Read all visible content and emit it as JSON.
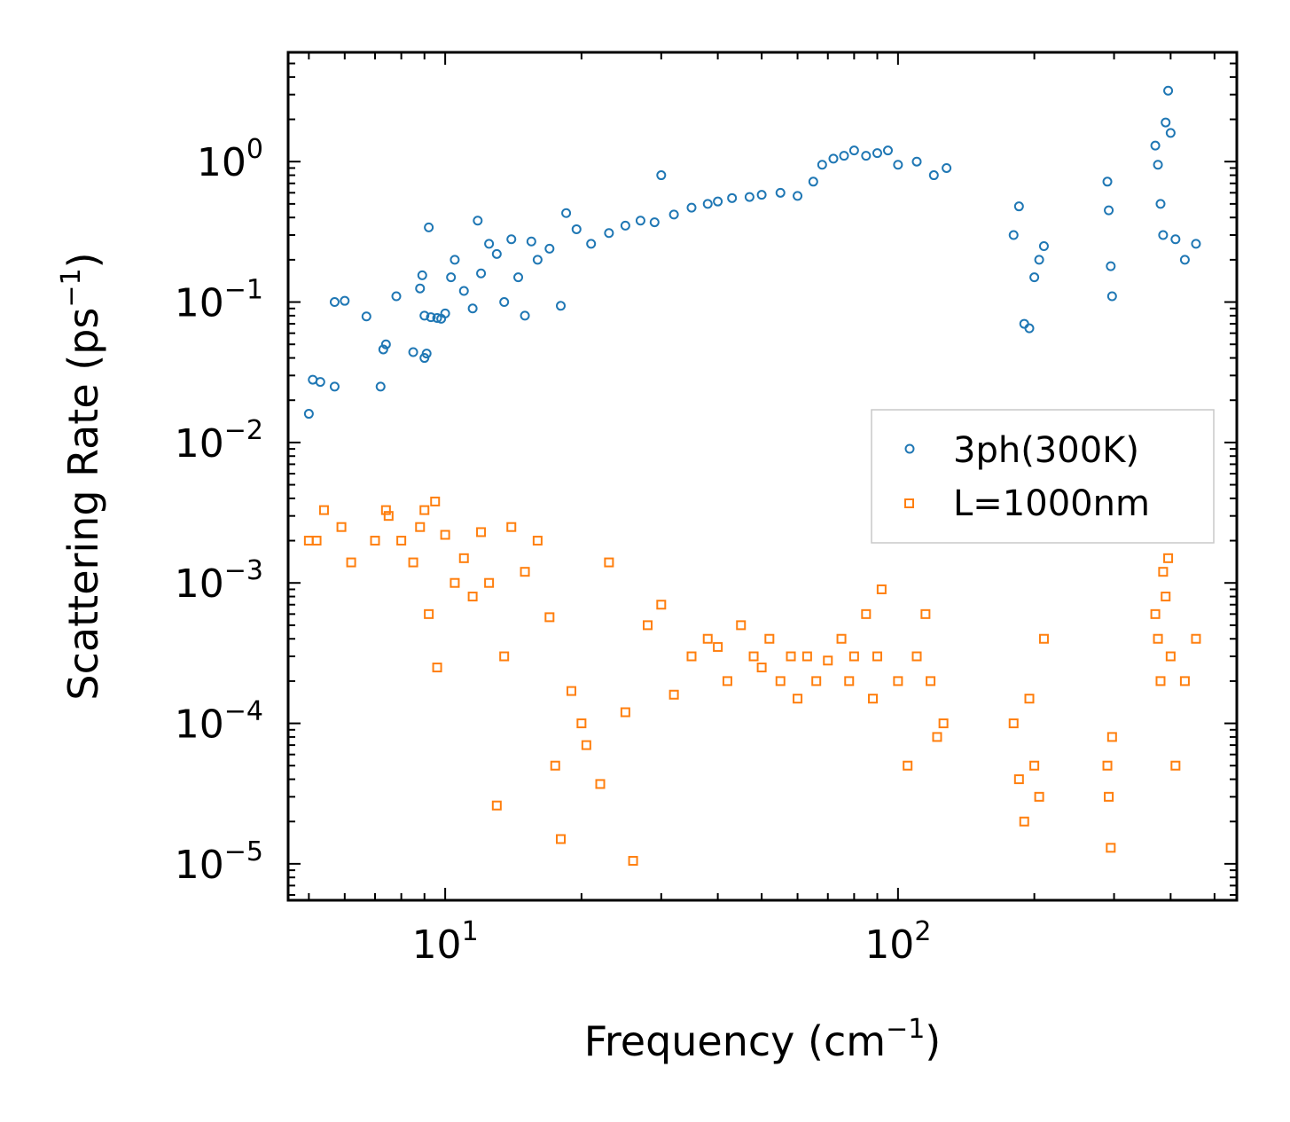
{
  "chart_data": {
    "type": "scatter",
    "xscale": "log",
    "yscale": "log",
    "xlim": [
      4.5,
      560
    ],
    "ylim": [
      5.5e-06,
      6
    ],
    "xlabel": {
      "text": "Frequency (cm",
      "sup": "−1",
      "close": ")"
    },
    "ylabel": {
      "text": "Scattering Rate (ps",
      "sup": "−1",
      "close": ")"
    },
    "xticks": [
      {
        "value": 10,
        "base": "10",
        "exp": "1"
      },
      {
        "value": 100,
        "base": "10",
        "exp": "2"
      }
    ],
    "yticks": [
      {
        "value": 1,
        "base": "10",
        "exp": "0"
      },
      {
        "value": 0.1,
        "base": "10",
        "exp": "−1"
      },
      {
        "value": 0.01,
        "base": "10",
        "exp": "−2"
      },
      {
        "value": 0.001,
        "base": "10",
        "exp": "−3"
      },
      {
        "value": 0.0001,
        "base": "10",
        "exp": "−4"
      },
      {
        "value": 1e-05,
        "base": "10",
        "exp": "−5"
      }
    ],
    "legend_position": "center-right",
    "series": [
      {
        "name": "3ph(300K)",
        "marker": "circle",
        "color": "#1f77b4",
        "points": [
          [
            5.0,
            0.016
          ],
          [
            5.1,
            0.028
          ],
          [
            5.3,
            0.027
          ],
          [
            5.7,
            0.025
          ],
          [
            5.7,
            0.1
          ],
          [
            6.0,
            0.102
          ],
          [
            6.7,
            0.079
          ],
          [
            7.2,
            0.025
          ],
          [
            7.3,
            0.046
          ],
          [
            7.4,
            0.05
          ],
          [
            7.8,
            0.11
          ],
          [
            8.5,
            0.044
          ],
          [
            8.8,
            0.125
          ],
          [
            8.9,
            0.155
          ],
          [
            9.0,
            0.08
          ],
          [
            9.0,
            0.04
          ],
          [
            9.1,
            0.043
          ],
          [
            9.2,
            0.34
          ],
          [
            9.3,
            0.078
          ],
          [
            9.6,
            0.077
          ],
          [
            9.8,
            0.076
          ],
          [
            10.0,
            0.083
          ],
          [
            10.3,
            0.15
          ],
          [
            10.5,
            0.2
          ],
          [
            11.0,
            0.12
          ],
          [
            11.5,
            0.09
          ],
          [
            11.8,
            0.38
          ],
          [
            12.0,
            0.16
          ],
          [
            12.5,
            0.26
          ],
          [
            13.0,
            0.22
          ],
          [
            13.5,
            0.1
          ],
          [
            14.0,
            0.28
          ],
          [
            14.5,
            0.15
          ],
          [
            15.0,
            0.08
          ],
          [
            15.5,
            0.27
          ],
          [
            16.0,
            0.2
          ],
          [
            17.0,
            0.24
          ],
          [
            18.0,
            0.094
          ],
          [
            18.5,
            0.43
          ],
          [
            19.5,
            0.33
          ],
          [
            21.0,
            0.26
          ],
          [
            23.0,
            0.31
          ],
          [
            25.0,
            0.35
          ],
          [
            27.0,
            0.38
          ],
          [
            29.0,
            0.37
          ],
          [
            30.0,
            0.8
          ],
          [
            32.0,
            0.42
          ],
          [
            35.0,
            0.47
          ],
          [
            38.0,
            0.5
          ],
          [
            40.0,
            0.52
          ],
          [
            43.0,
            0.55
          ],
          [
            47.0,
            0.56
          ],
          [
            50.0,
            0.58
          ],
          [
            55.0,
            0.6
          ],
          [
            60.0,
            0.57
          ],
          [
            65.0,
            0.72
          ],
          [
            68.0,
            0.95
          ],
          [
            72.0,
            1.05
          ],
          [
            76.0,
            1.1
          ],
          [
            80.0,
            1.2
          ],
          [
            85.0,
            1.1
          ],
          [
            90.0,
            1.15
          ],
          [
            95.0,
            1.2
          ],
          [
            100.0,
            0.95
          ],
          [
            110.0,
            1.0
          ],
          [
            120.0,
            0.8
          ],
          [
            128.0,
            0.9
          ],
          [
            180.0,
            0.3
          ],
          [
            185.0,
            0.48
          ],
          [
            190.0,
            0.07
          ],
          [
            195.0,
            0.065
          ],
          [
            200.0,
            0.15
          ],
          [
            205.0,
            0.2
          ],
          [
            210.0,
            0.25
          ],
          [
            290.0,
            0.72
          ],
          [
            292.0,
            0.45
          ],
          [
            295.0,
            0.18
          ],
          [
            297.0,
            0.11
          ],
          [
            370.0,
            1.3
          ],
          [
            375.0,
            0.95
          ],
          [
            380.0,
            0.5
          ],
          [
            385.0,
            0.3
          ],
          [
            390.0,
            1.9
          ],
          [
            395.0,
            3.2
          ],
          [
            400.0,
            1.6
          ],
          [
            410.0,
            0.28
          ],
          [
            430.0,
            0.2
          ],
          [
            455.0,
            0.26
          ]
        ]
      },
      {
        "name": "L=1000nm",
        "marker": "square",
        "color": "#ff7f0e",
        "points": [
          [
            5.0,
            0.002
          ],
          [
            5.2,
            0.002
          ],
          [
            5.4,
            0.0033
          ],
          [
            5.9,
            0.0025
          ],
          [
            6.2,
            0.0014
          ],
          [
            7.0,
            0.002
          ],
          [
            7.4,
            0.0033
          ],
          [
            7.5,
            0.003
          ],
          [
            8.0,
            0.002
          ],
          [
            8.5,
            0.0014
          ],
          [
            8.8,
            0.0025
          ],
          [
            9.0,
            0.0033
          ],
          [
            9.2,
            0.0006
          ],
          [
            9.5,
            0.0038
          ],
          [
            9.6,
            0.00025
          ],
          [
            10.0,
            0.0022
          ],
          [
            10.5,
            0.001
          ],
          [
            11.0,
            0.0015
          ],
          [
            11.5,
            0.0008
          ],
          [
            12.0,
            0.0023
          ],
          [
            12.5,
            0.001
          ],
          [
            13.0,
            2.6e-05
          ],
          [
            13.5,
            0.0003
          ],
          [
            14.0,
            0.0025
          ],
          [
            15.0,
            0.0012
          ],
          [
            16.0,
            0.002
          ],
          [
            17.0,
            0.00057
          ],
          [
            17.5,
            5e-05
          ],
          [
            18.0,
            1.5e-05
          ],
          [
            19.0,
            0.00017
          ],
          [
            20.0,
            0.0001
          ],
          [
            20.5,
            7e-05
          ],
          [
            22.0,
            3.7e-05
          ],
          [
            23.0,
            0.0014
          ],
          [
            25.0,
            0.00012
          ],
          [
            26.0,
            1.05e-05
          ],
          [
            28.0,
            0.0005
          ],
          [
            30.0,
            0.0007
          ],
          [
            32.0,
            0.00016
          ],
          [
            35.0,
            0.0003
          ],
          [
            38.0,
            0.0004
          ],
          [
            40.0,
            0.00035
          ],
          [
            42.0,
            0.0002
          ],
          [
            45.0,
            0.0005
          ],
          [
            48.0,
            0.0003
          ],
          [
            50.0,
            0.00025
          ],
          [
            52.0,
            0.0004
          ],
          [
            55.0,
            0.0002
          ],
          [
            58.0,
            0.0003
          ],
          [
            60.0,
            0.00015
          ],
          [
            63.0,
            0.0003
          ],
          [
            66.0,
            0.0002
          ],
          [
            70.0,
            0.00028
          ],
          [
            75.0,
            0.0004
          ],
          [
            78.0,
            0.0002
          ],
          [
            80.0,
            0.0003
          ],
          [
            85.0,
            0.0006
          ],
          [
            88.0,
            0.00015
          ],
          [
            90.0,
            0.0003
          ],
          [
            92.0,
            0.0009
          ],
          [
            100.0,
            0.0002
          ],
          [
            105.0,
            5e-05
          ],
          [
            110.0,
            0.0003
          ],
          [
            115.0,
            0.0006
          ],
          [
            118.0,
            0.0002
          ],
          [
            122.0,
            8e-05
          ],
          [
            126.0,
            0.0001
          ],
          [
            180.0,
            0.0001
          ],
          [
            185.0,
            4e-05
          ],
          [
            190.0,
            2e-05
          ],
          [
            195.0,
            0.00015
          ],
          [
            200.0,
            5e-05
          ],
          [
            205.0,
            3e-05
          ],
          [
            210.0,
            0.0004
          ],
          [
            290.0,
            5e-05
          ],
          [
            292.0,
            3e-05
          ],
          [
            295.0,
            1.3e-05
          ],
          [
            297.0,
            8e-05
          ],
          [
            370.0,
            0.0006
          ],
          [
            375.0,
            0.0004
          ],
          [
            380.0,
            0.0002
          ],
          [
            385.0,
            0.0012
          ],
          [
            390.0,
            0.0008
          ],
          [
            395.0,
            0.0015
          ],
          [
            400.0,
            0.0003
          ],
          [
            410.0,
            5e-05
          ],
          [
            430.0,
            0.0002
          ],
          [
            455.0,
            0.0004
          ]
        ]
      }
    ]
  }
}
